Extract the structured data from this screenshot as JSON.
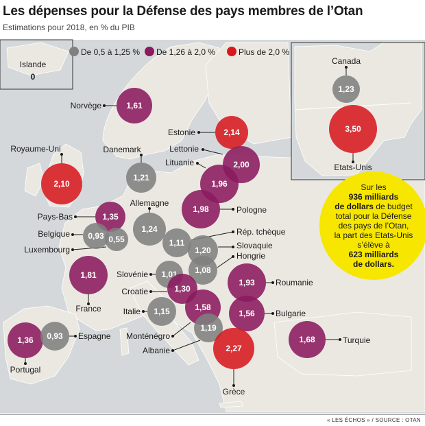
{
  "title": "Les dépenses pour la Défense des pays membres de l’Otan",
  "subtitle": "Estimations pour 2018, en % du PIB",
  "credit": "« LES ÉCHOS » / SOURCE : OTAN",
  "legend": [
    {
      "label": "De 0,5 à 1,25 %",
      "color": "#808080"
    },
    {
      "label": "De 1,26 à 2,0 %",
      "color": "#8b1a5e"
    },
    {
      "label": "Plus de 2,0 %",
      "color": "#d7191f"
    }
  ],
  "iceland": {
    "name": "Islande",
    "value": "0"
  },
  "callout": {
    "l1": "Sur les",
    "l2": "936 milliards",
    "l3": "de dollars",
    "l4": " de budget",
    "l5": "total pour la Défense",
    "l6": "des pays de l’Otan,",
    "l7": "la part des Etats-Unis",
    "l8": "s’élève à",
    "l9": "623 milliards",
    "l10": "de dollars."
  },
  "countries": [
    {
      "name": "Canada",
      "value": "1,23",
      "level": "low"
    },
    {
      "name": "Etats-Unis",
      "value": "3,50",
      "level": "high"
    },
    {
      "name": "Norvège",
      "value": "1,61",
      "level": "mid"
    },
    {
      "name": "Estonie",
      "value": "2,14",
      "level": "high"
    },
    {
      "name": "Royaume-Uni",
      "value": "2,10",
      "level": "high"
    },
    {
      "name": "Danemark",
      "value": "1,21",
      "level": "low"
    },
    {
      "name": "Lettonie",
      "value": "2,00",
      "level": "mid"
    },
    {
      "name": "Lituanie",
      "value": "1,96",
      "level": "mid"
    },
    {
      "name": "Allemagne",
      "value": "1,24",
      "level": "low"
    },
    {
      "name": "Pologne",
      "value": "1,98",
      "level": "mid"
    },
    {
      "name": "Pays-Bas",
      "value": "1,35",
      "level": "mid"
    },
    {
      "name": "Belgique",
      "value": "0,93",
      "level": "low"
    },
    {
      "name": "Luxembourg",
      "value": "0,55",
      "level": "low"
    },
    {
      "name": "Rép. tchèque",
      "value": "1,11",
      "level": "low"
    },
    {
      "name": "Slovaquie",
      "value": "1,20",
      "level": "low"
    },
    {
      "name": "Hongrie",
      "value": "1,08",
      "level": "low"
    },
    {
      "name": "France",
      "value": "1,81",
      "level": "mid"
    },
    {
      "name": "Slovénie",
      "value": "1,01",
      "level": "low"
    },
    {
      "name": "Croatie",
      "value": "1,30",
      "level": "mid"
    },
    {
      "name": "Roumanie",
      "value": "1,93",
      "level": "mid"
    },
    {
      "name": "Italie",
      "value": "1,15",
      "level": "low"
    },
    {
      "name": "Bulgarie",
      "value": "1,56",
      "level": "mid"
    },
    {
      "name": "Monténégro",
      "value": "1,58",
      "level": "mid"
    },
    {
      "name": "Albanie",
      "value": "1,19",
      "level": "low"
    },
    {
      "name": "Portugal",
      "value": "1,36",
      "level": "mid"
    },
    {
      "name": "Espagne",
      "value": "0,93",
      "level": "low"
    },
    {
      "name": "Turquie",
      "value": "1,68",
      "level": "mid"
    },
    {
      "name": "Grèce",
      "value": "2,27",
      "level": "high"
    }
  ]
}
